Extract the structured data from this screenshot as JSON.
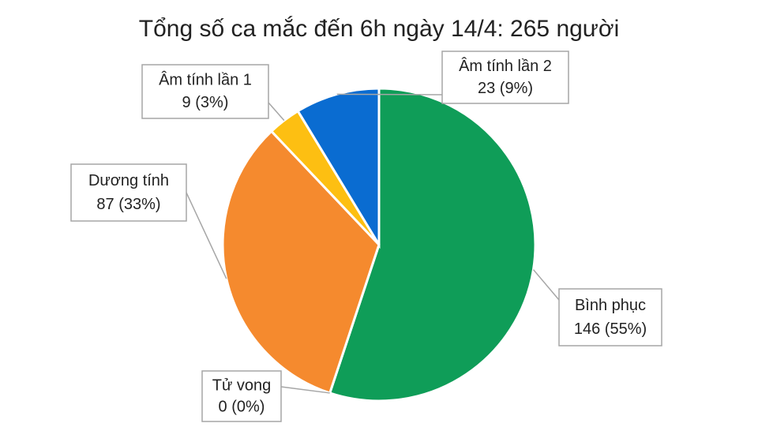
{
  "chart_data": {
    "type": "pie",
    "title": "Tổng số ca mắc đến 6h ngày 14/4: 265 người",
    "categories": [
      "Bình phục",
      "Tử vong",
      "Dương tính",
      "Âm tính lần 1",
      "Âm tính lần 2"
    ],
    "values": [
      146,
      0,
      87,
      9,
      23
    ],
    "value_labels": [
      "146 (55%)",
      "0 (0%)",
      "87 (33%)",
      "9 (3%)",
      "23 (9%)"
    ],
    "colors": [
      "#0f9d58",
      "#7f7f7f",
      "#f58a2e",
      "#fdbf12",
      "#0a6cd1"
    ]
  }
}
